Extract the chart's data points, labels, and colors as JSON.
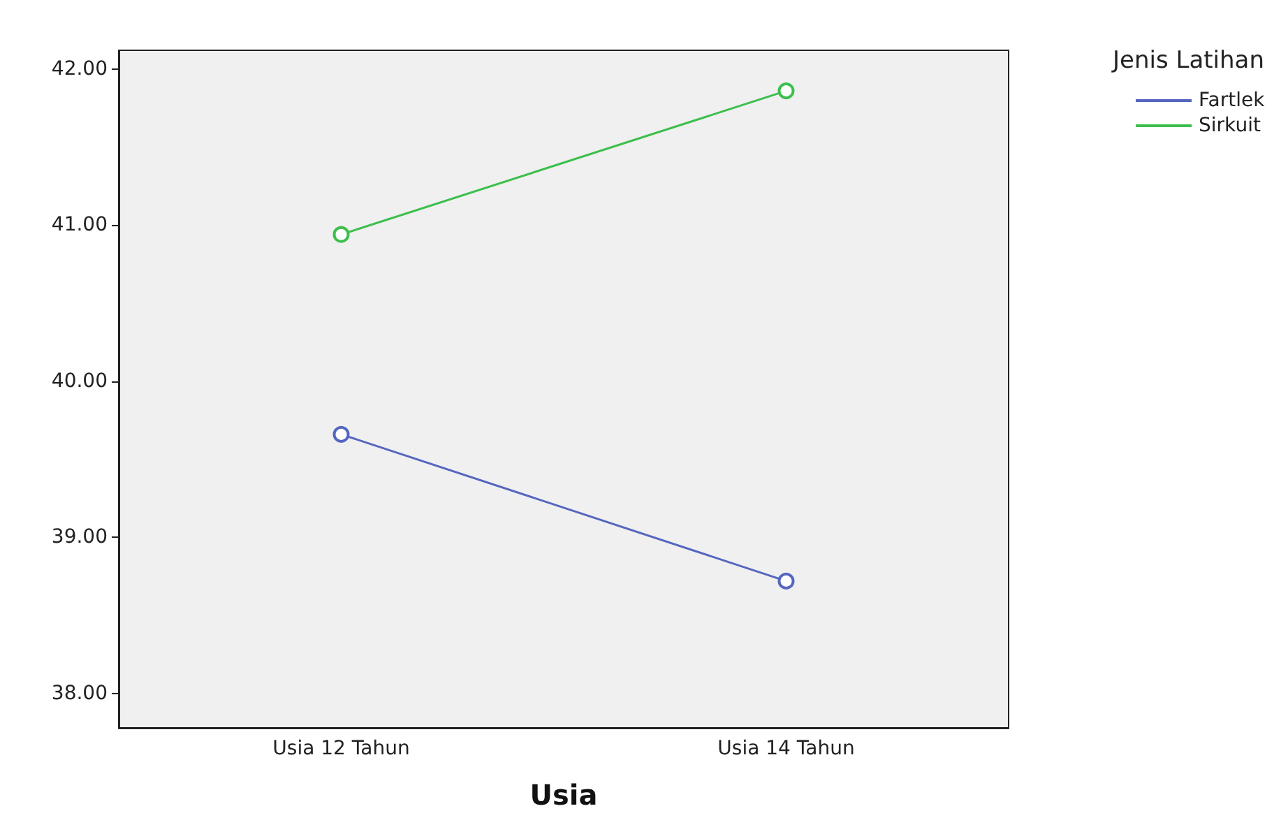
{
  "chart_data": {
    "type": "line",
    "xlabel": "Usia",
    "legend_title": "Jenis Latihan",
    "categories": [
      "Usia 12 Tahun",
      "Usia 14 Tahun"
    ],
    "series": [
      {
        "name": "Fartlek",
        "color": "#5566c0",
        "values": [
          39.66,
          38.72
        ]
      },
      {
        "name": "Sirkuit",
        "color": "#3cbf4c",
        "values": [
          40.94,
          41.86
        ]
      }
    ],
    "ylim": [
      37.78,
      42.12
    ],
    "yticks": [
      {
        "value": 38,
        "label": "38.00"
      },
      {
        "value": 39,
        "label": "39.00"
      },
      {
        "value": 40,
        "label": "40.00"
      },
      {
        "value": 41,
        "label": "41.00"
      },
      {
        "value": 42,
        "label": "42.00"
      }
    ],
    "grid": false,
    "legend": "top right",
    "marker": "circle",
    "line_style": "solid"
  }
}
